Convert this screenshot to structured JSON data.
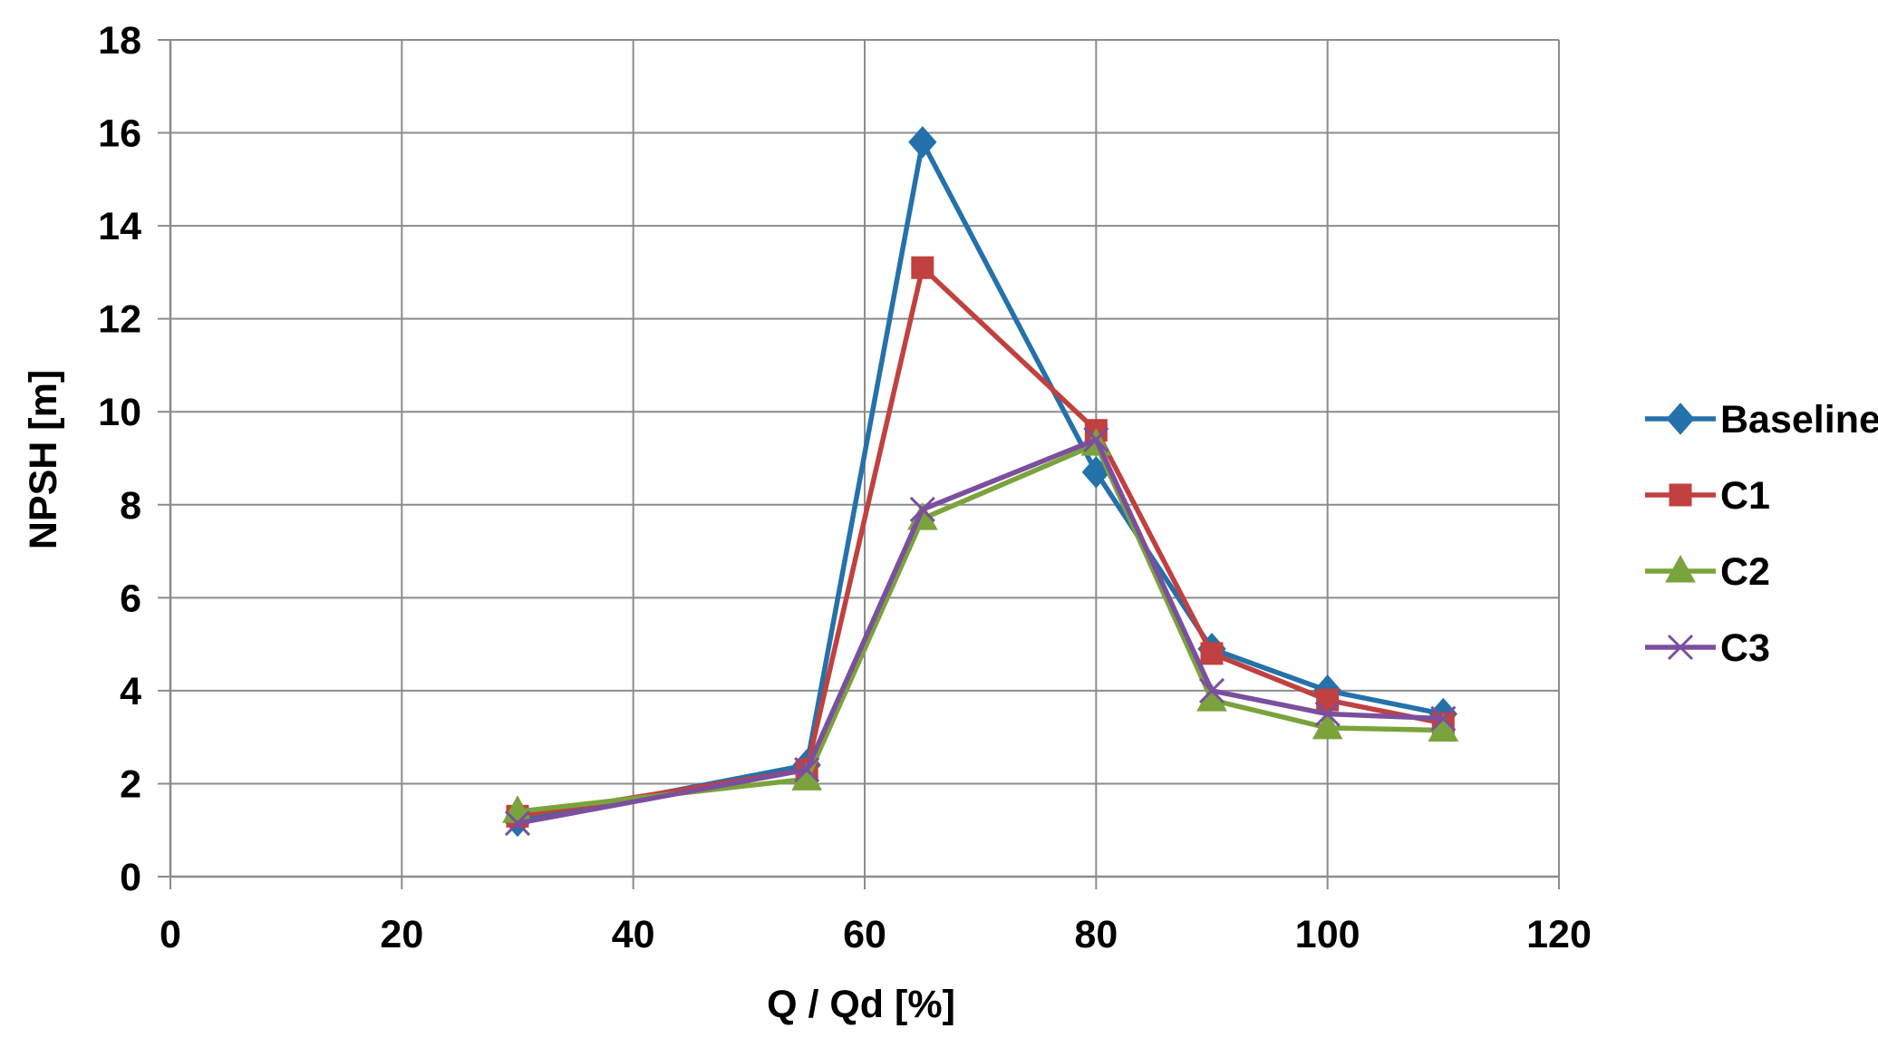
{
  "chart_data": {
    "type": "line",
    "title": "",
    "xlabel": "Q / Qd  [%]",
    "ylabel": "NPSH [m]",
    "xlim": [
      0,
      120
    ],
    "ylim": [
      0,
      18
    ],
    "xticks": [
      0,
      20,
      40,
      60,
      80,
      100,
      120
    ],
    "yticks": [
      0,
      2,
      4,
      6,
      8,
      10,
      12,
      14,
      16,
      18
    ],
    "grid": true,
    "legend_position": "right",
    "series": [
      {
        "name": "Baseline",
        "color": "#2471ab",
        "marker": "diamond",
        "points": [
          [
            30,
            1.2
          ],
          [
            55,
            2.4
          ],
          [
            65,
            15.8
          ],
          [
            80,
            8.7
          ],
          [
            90,
            4.9
          ],
          [
            100,
            4.0
          ],
          [
            110,
            3.5
          ]
        ]
      },
      {
        "name": "C1",
        "color": "#c0413f",
        "marker": "square",
        "points": [
          [
            30,
            1.3
          ],
          [
            55,
            2.3
          ],
          [
            65,
            13.1
          ],
          [
            80,
            9.6
          ],
          [
            90,
            4.8
          ],
          [
            100,
            3.8
          ],
          [
            110,
            3.3
          ]
        ]
      },
      {
        "name": "C2",
        "color": "#7aa33c",
        "marker": "triangle",
        "points": [
          [
            30,
            1.4
          ],
          [
            55,
            2.1
          ],
          [
            65,
            7.7
          ],
          [
            80,
            9.3
          ],
          [
            90,
            3.8
          ],
          [
            100,
            3.2
          ],
          [
            110,
            3.15
          ]
        ]
      },
      {
        "name": "C3",
        "color": "#7b4f9e",
        "marker": "x",
        "points": [
          [
            30,
            1.15
          ],
          [
            55,
            2.3
          ],
          [
            65,
            7.9
          ],
          [
            80,
            9.4
          ],
          [
            90,
            4.0
          ],
          [
            100,
            3.5
          ],
          [
            110,
            3.4
          ]
        ]
      }
    ]
  }
}
